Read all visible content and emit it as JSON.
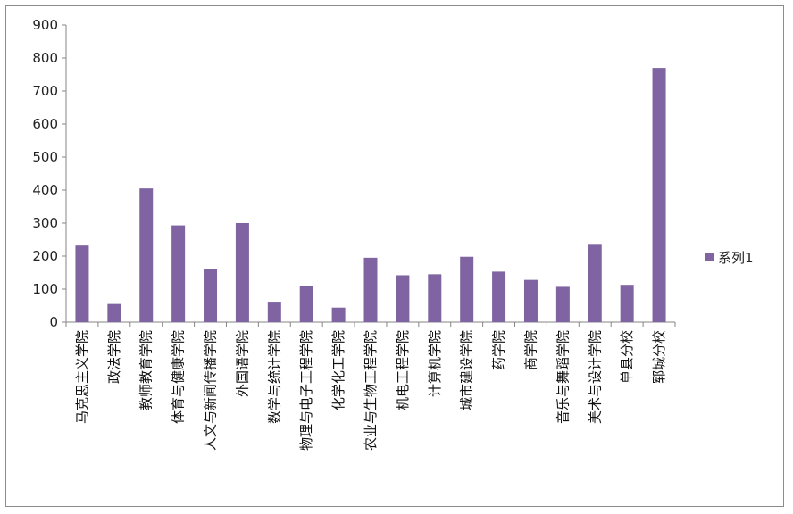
{
  "chart_data": {
    "type": "bar",
    "title": "",
    "xlabel": "",
    "ylabel": "",
    "ylim": [
      0,
      900
    ],
    "yticks": [
      0,
      100,
      200,
      300,
      400,
      500,
      600,
      700,
      800,
      900
    ],
    "grid": false,
    "legend_position": "right",
    "categories": [
      "马克思主义学院",
      "政法学院",
      "教师教育学院",
      "体育与健康学院",
      "人文与新闻传播学院",
      "外国语学院",
      "数学与统计学院",
      "物理与电子工程学院",
      "化学化工学院",
      "农业与生物工程学院",
      "机电工程学院",
      "计算机学院",
      "城市建设学院",
      "药学院",
      "商学院",
      "音乐与舞蹈学院",
      "美术与设计学院",
      "单县分校",
      "郓城分校"
    ],
    "series": [
      {
        "name": "系列1",
        "color": "#8064a2",
        "values": [
          232,
          55,
          405,
          293,
          160,
          300,
          62,
          110,
          44,
          195,
          142,
          145,
          198,
          153,
          128,
          107,
          237,
          113,
          770
        ]
      }
    ]
  }
}
